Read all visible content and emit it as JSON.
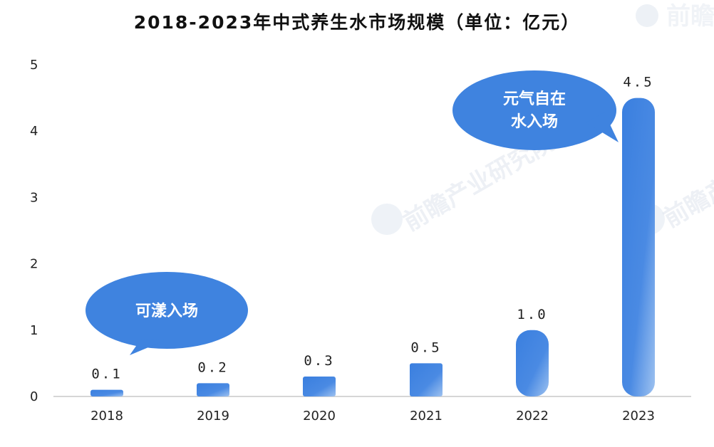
{
  "chart_data": {
    "type": "bar",
    "title": "2018-2023年中式养生水市场规模（单位：亿元）",
    "categories": [
      "2018",
      "2019",
      "2020",
      "2021",
      "2022",
      "2023"
    ],
    "values": [
      0.1,
      0.2,
      0.3,
      0.5,
      1.0,
      4.5
    ],
    "value_labels": [
      "0.1",
      "0.2",
      "0.3",
      "0.5",
      "1.0",
      "4.5"
    ],
    "ylim": [
      0,
      5
    ],
    "yticks": [
      "0",
      "1",
      "2",
      "3",
      "4",
      "5"
    ],
    "grid": false,
    "bar_color": "#3f83df",
    "annotations": [
      {
        "text": "可漾入场",
        "near": "2018"
      },
      {
        "lines": [
          "元气自在",
          "水入场"
        ],
        "near": "2023"
      }
    ]
  },
  "watermark": "前瞻产业研究院"
}
